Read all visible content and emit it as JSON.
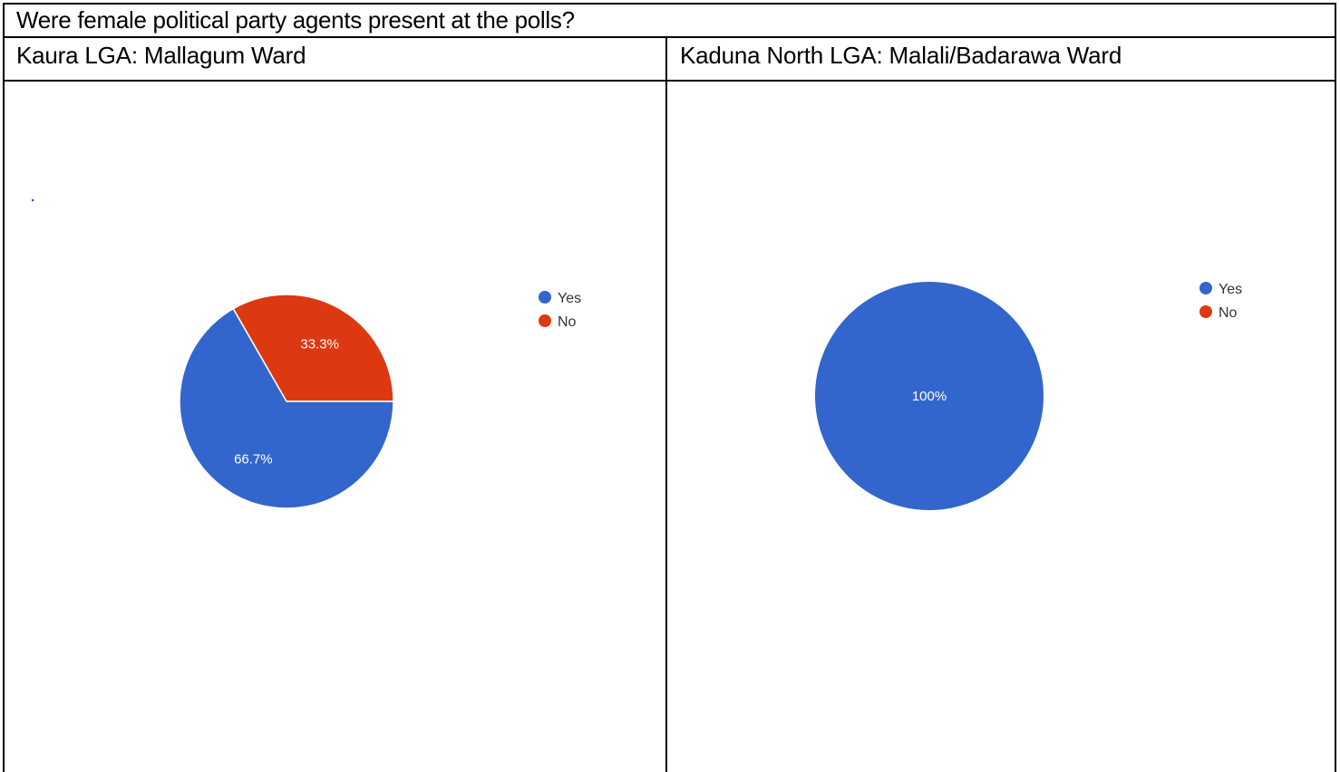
{
  "title": "Were female political party agents present at the polls?",
  "columns": [
    {
      "heading": "Kaura LGA: Mallagum Ward"
    },
    {
      "heading": "Kaduna North LGA: Malali/Badarawa Ward"
    }
  ],
  "colors": {
    "yes": "#3366cc",
    "no": "#dc3912"
  },
  "chart_data": [
    {
      "type": "pie",
      "categories": [
        "Yes",
        "No"
      ],
      "values": [
        66.7,
        33.3
      ],
      "labels": [
        "66.7%",
        "33.3%"
      ],
      "legend": [
        "Yes",
        "No"
      ],
      "legend_position": "right"
    },
    {
      "type": "pie",
      "categories": [
        "Yes",
        "No"
      ],
      "values": [
        100,
        0
      ],
      "labels": [
        "100%",
        ""
      ],
      "legend": [
        "Yes",
        "No"
      ],
      "legend_position": "right"
    }
  ]
}
